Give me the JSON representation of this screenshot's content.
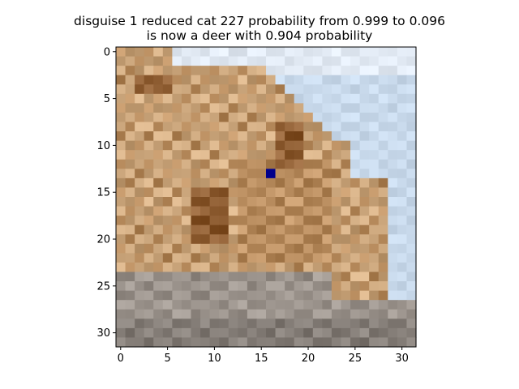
{
  "figure": {
    "title_line1": "disguise 1 reduced cat 227 probability from 0.999 to 0.096",
    "title_line2": "is now a deer with 0.904 probability"
  },
  "image": {
    "subject": "pixelated cat photo (32x32)",
    "grid_size": 32,
    "palette": {
      "sky": "#cfe0f2",
      "sky_light": "#e8f0fa",
      "fur_light": "#d9b48a",
      "fur_mid": "#c69a6c",
      "fur_dark": "#9c6b40",
      "ground": "#a79f98",
      "ground_dark": "#8f8882"
    },
    "perturbed_pixel": {
      "row": 13,
      "col": 16,
      "color": "#00008b"
    }
  },
  "axes": {
    "xticks": [
      "0",
      "5",
      "10",
      "15",
      "20",
      "25",
      "30"
    ],
    "yticks": [
      "0",
      "5",
      "10",
      "15",
      "20",
      "25",
      "30"
    ]
  }
}
